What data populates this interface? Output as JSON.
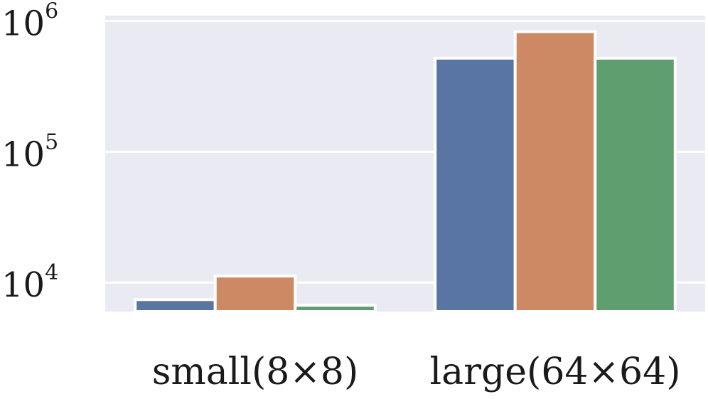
{
  "chart_data": {
    "type": "bar",
    "title": "",
    "xlabel": "",
    "ylabel": "",
    "yscale": "log",
    "ylim": [
      6000,
      1100000
    ],
    "grid": true,
    "yticks": [
      {
        "value": 10000,
        "base": "10",
        "exp": "4"
      },
      {
        "value": 100000,
        "base": "10",
        "exp": "5"
      },
      {
        "value": 1000000,
        "base": "10",
        "exp": "6"
      }
    ],
    "categories": [
      "small(8×8)",
      "large(64×64)"
    ],
    "series": [
      {
        "color": "#5975a4",
        "values": [
          7400,
          520000
        ]
      },
      {
        "color": "#cc8963",
        "values": [
          11200,
          830000
        ]
      },
      {
        "color": "#5f9e6e",
        "values": [
          6700,
          520000
        ]
      }
    ],
    "colors": {
      "plot_bg": "#eaeaf2",
      "grid": "#ffffff",
      "bar_edge": "#ffffff"
    }
  }
}
